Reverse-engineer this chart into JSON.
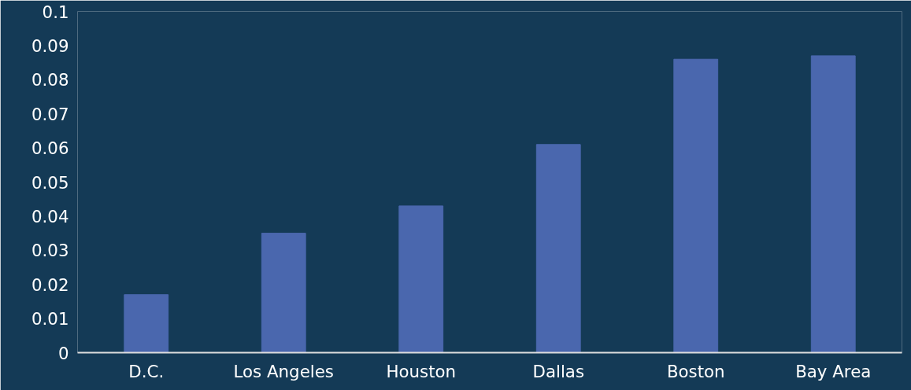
{
  "chart_data": {
    "type": "bar",
    "categories": [
      "D.C.",
      "Los Angeles",
      "Houston",
      "Dallas",
      "Boston",
      "Bay Area"
    ],
    "values": [
      0.017,
      0.035,
      0.043,
      0.061,
      0.086,
      0.087
    ],
    "color": "#4a67ae",
    "ylim": [
      0,
      0.1
    ],
    "yticks": [
      0,
      0.01,
      0.02,
      0.03,
      0.04,
      0.05,
      0.06,
      0.07,
      0.08,
      0.09,
      0.1
    ],
    "grid": false
  }
}
